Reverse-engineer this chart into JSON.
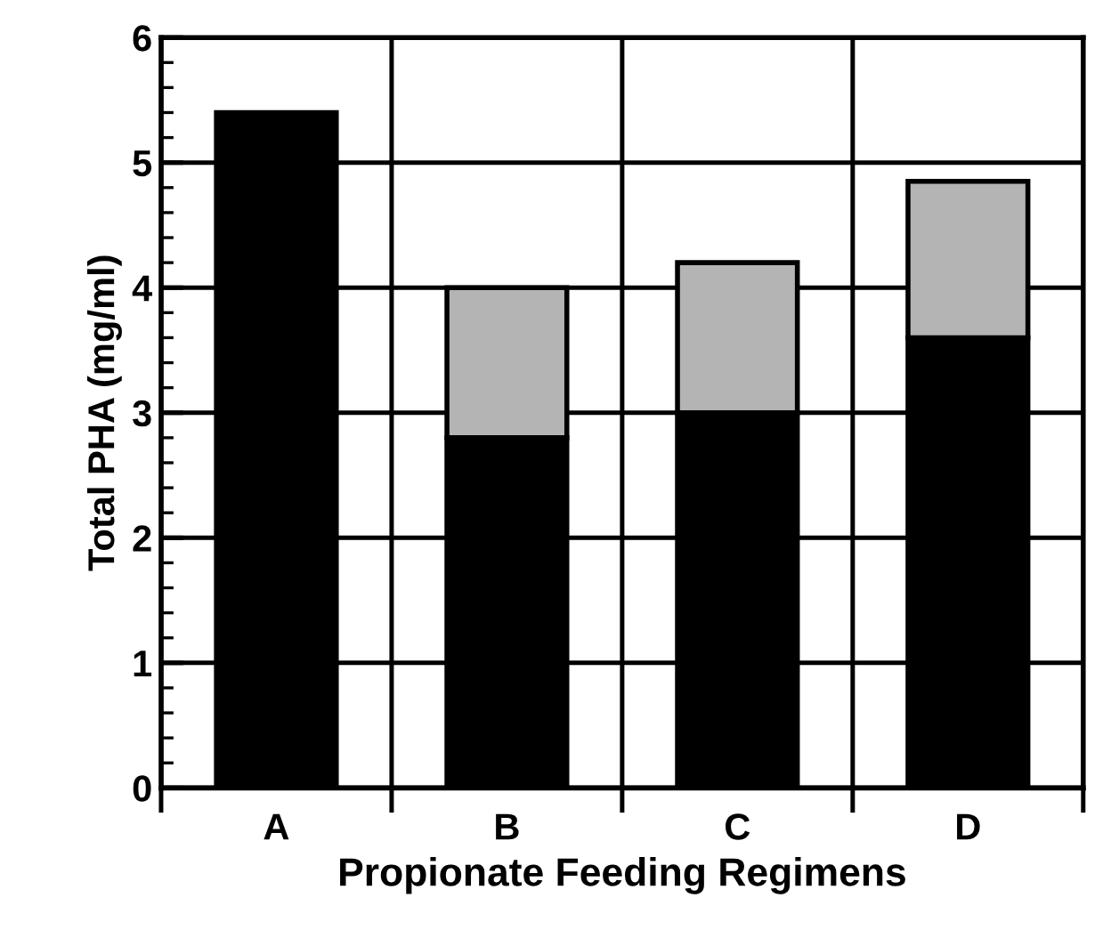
{
  "chart_data": {
    "type": "bar",
    "stacked": true,
    "xlabel": "Propionate Feeding Regimens",
    "ylabel": "Total PHA (mg/ml)",
    "categories": [
      "A",
      "B",
      "C",
      "D"
    ],
    "series": [
      {
        "color": "#000000",
        "values": [
          5.4,
          2.8,
          3.0,
          3.6
        ]
      },
      {
        "color": "#b4b4b4",
        "values": [
          null,
          1.2,
          1.2,
          1.25
        ]
      }
    ],
    "ylim": [
      0,
      6
    ],
    "yticks": [
      0,
      1,
      2,
      3,
      4,
      5,
      6
    ],
    "grid": true,
    "legend": false
  }
}
